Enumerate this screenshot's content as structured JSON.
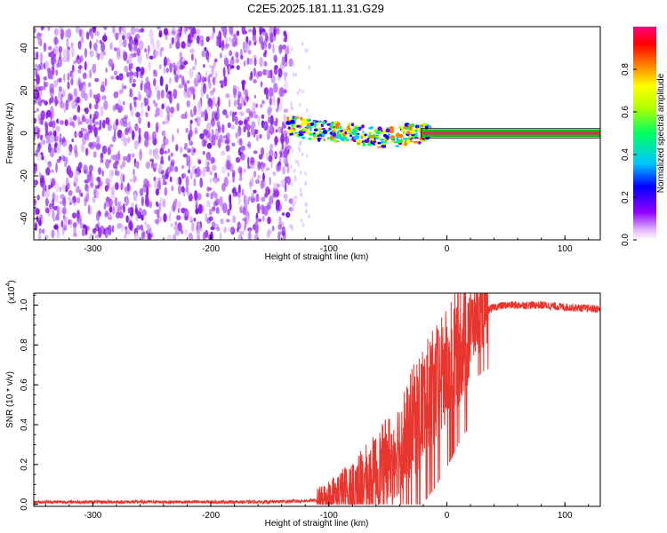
{
  "title": "C2E5.2025.181.11.31.G29",
  "chart_data": [
    {
      "type": "heatmap",
      "xlabel": "Height of straight line (km)",
      "ylabel": "Frequency (Hz)",
      "xlim": [
        -350,
        130
      ],
      "ylim": [
        -50,
        50
      ],
      "x_ticks": [
        -300,
        -200,
        -100,
        0,
        100
      ],
      "x_tick_labels": [
        "-300",
        "-200",
        "-100",
        "0",
        "100"
      ],
      "y_ticks": [
        -40,
        -20,
        0,
        20,
        40
      ],
      "y_tick_labels": [
        "-40",
        "-20",
        "0",
        "20",
        "40"
      ],
      "colorbar": {
        "label": "Normalized spectral amplitude",
        "range": [
          0,
          1
        ],
        "ticks": [
          0.0,
          0.2,
          0.4,
          0.6,
          0.8
        ],
        "tick_labels": [
          "0.0",
          "0.2",
          "0.4",
          "0.6",
          "0.8"
        ],
        "colors": [
          "#ffffff",
          "#e0b0ff",
          "#9000ff",
          "#0000ff",
          "#00c8ff",
          "#00ff60",
          "#b0ff00",
          "#ffff00",
          "#ff8000",
          "#ff0000",
          "#ff0080"
        ]
      },
      "noise_region_x": [
        -350,
        -132
      ],
      "signal_track": [
        {
          "x": -135,
          "freq": 4
        },
        {
          "x": -120,
          "freq": 2
        },
        {
          "x": -100,
          "freq": 1
        },
        {
          "x": -80,
          "freq": 0
        },
        {
          "x": -60,
          "freq": -2
        },
        {
          "x": -45,
          "freq": -2
        },
        {
          "x": -30,
          "freq": 0
        },
        {
          "x": -15,
          "freq": 0
        },
        {
          "x": 0,
          "freq": 0
        },
        {
          "x": 130,
          "freq": 0
        }
      ]
    },
    {
      "type": "line",
      "xlabel": "Height of straight line (km)",
      "ylabel": "SNR (10 * v/v)",
      "scale_note": "(x10",
      "scale_exp": "4",
      "xlim": [
        -350,
        130
      ],
      "ylim": [
        -0.01,
        1.06
      ],
      "x_ticks": [
        -300,
        -200,
        -100,
        0,
        100
      ],
      "x_tick_labels": [
        "-300",
        "-200",
        "-100",
        "0",
        "100"
      ],
      "y_ticks": [
        0.0,
        0.2,
        0.4,
        0.6,
        0.8,
        1.0
      ],
      "y_tick_labels": [
        "0.0",
        "0.2",
        "0.4",
        "0.6",
        "0.8",
        "1.0"
      ],
      "series": [
        {
          "color": "#e8352e",
          "x": [
            -350,
            -300,
            -250,
            -200,
            -150,
            -110,
            -100,
            -90,
            -80,
            -70,
            -60,
            -50,
            -40,
            -30,
            -20,
            -10,
            0,
            10,
            20,
            30,
            40,
            50,
            60,
            80,
            100,
            130
          ],
          "y": [
            0.012,
            0.012,
            0.012,
            0.012,
            0.012,
            0.02,
            0.04,
            0.06,
            0.09,
            0.12,
            0.16,
            0.22,
            0.3,
            0.4,
            0.5,
            0.58,
            0.68,
            0.8,
            0.9,
            0.96,
            0.99,
            1.0,
            1.0,
            1.0,
            0.99,
            0.98
          ]
        }
      ]
    }
  ]
}
